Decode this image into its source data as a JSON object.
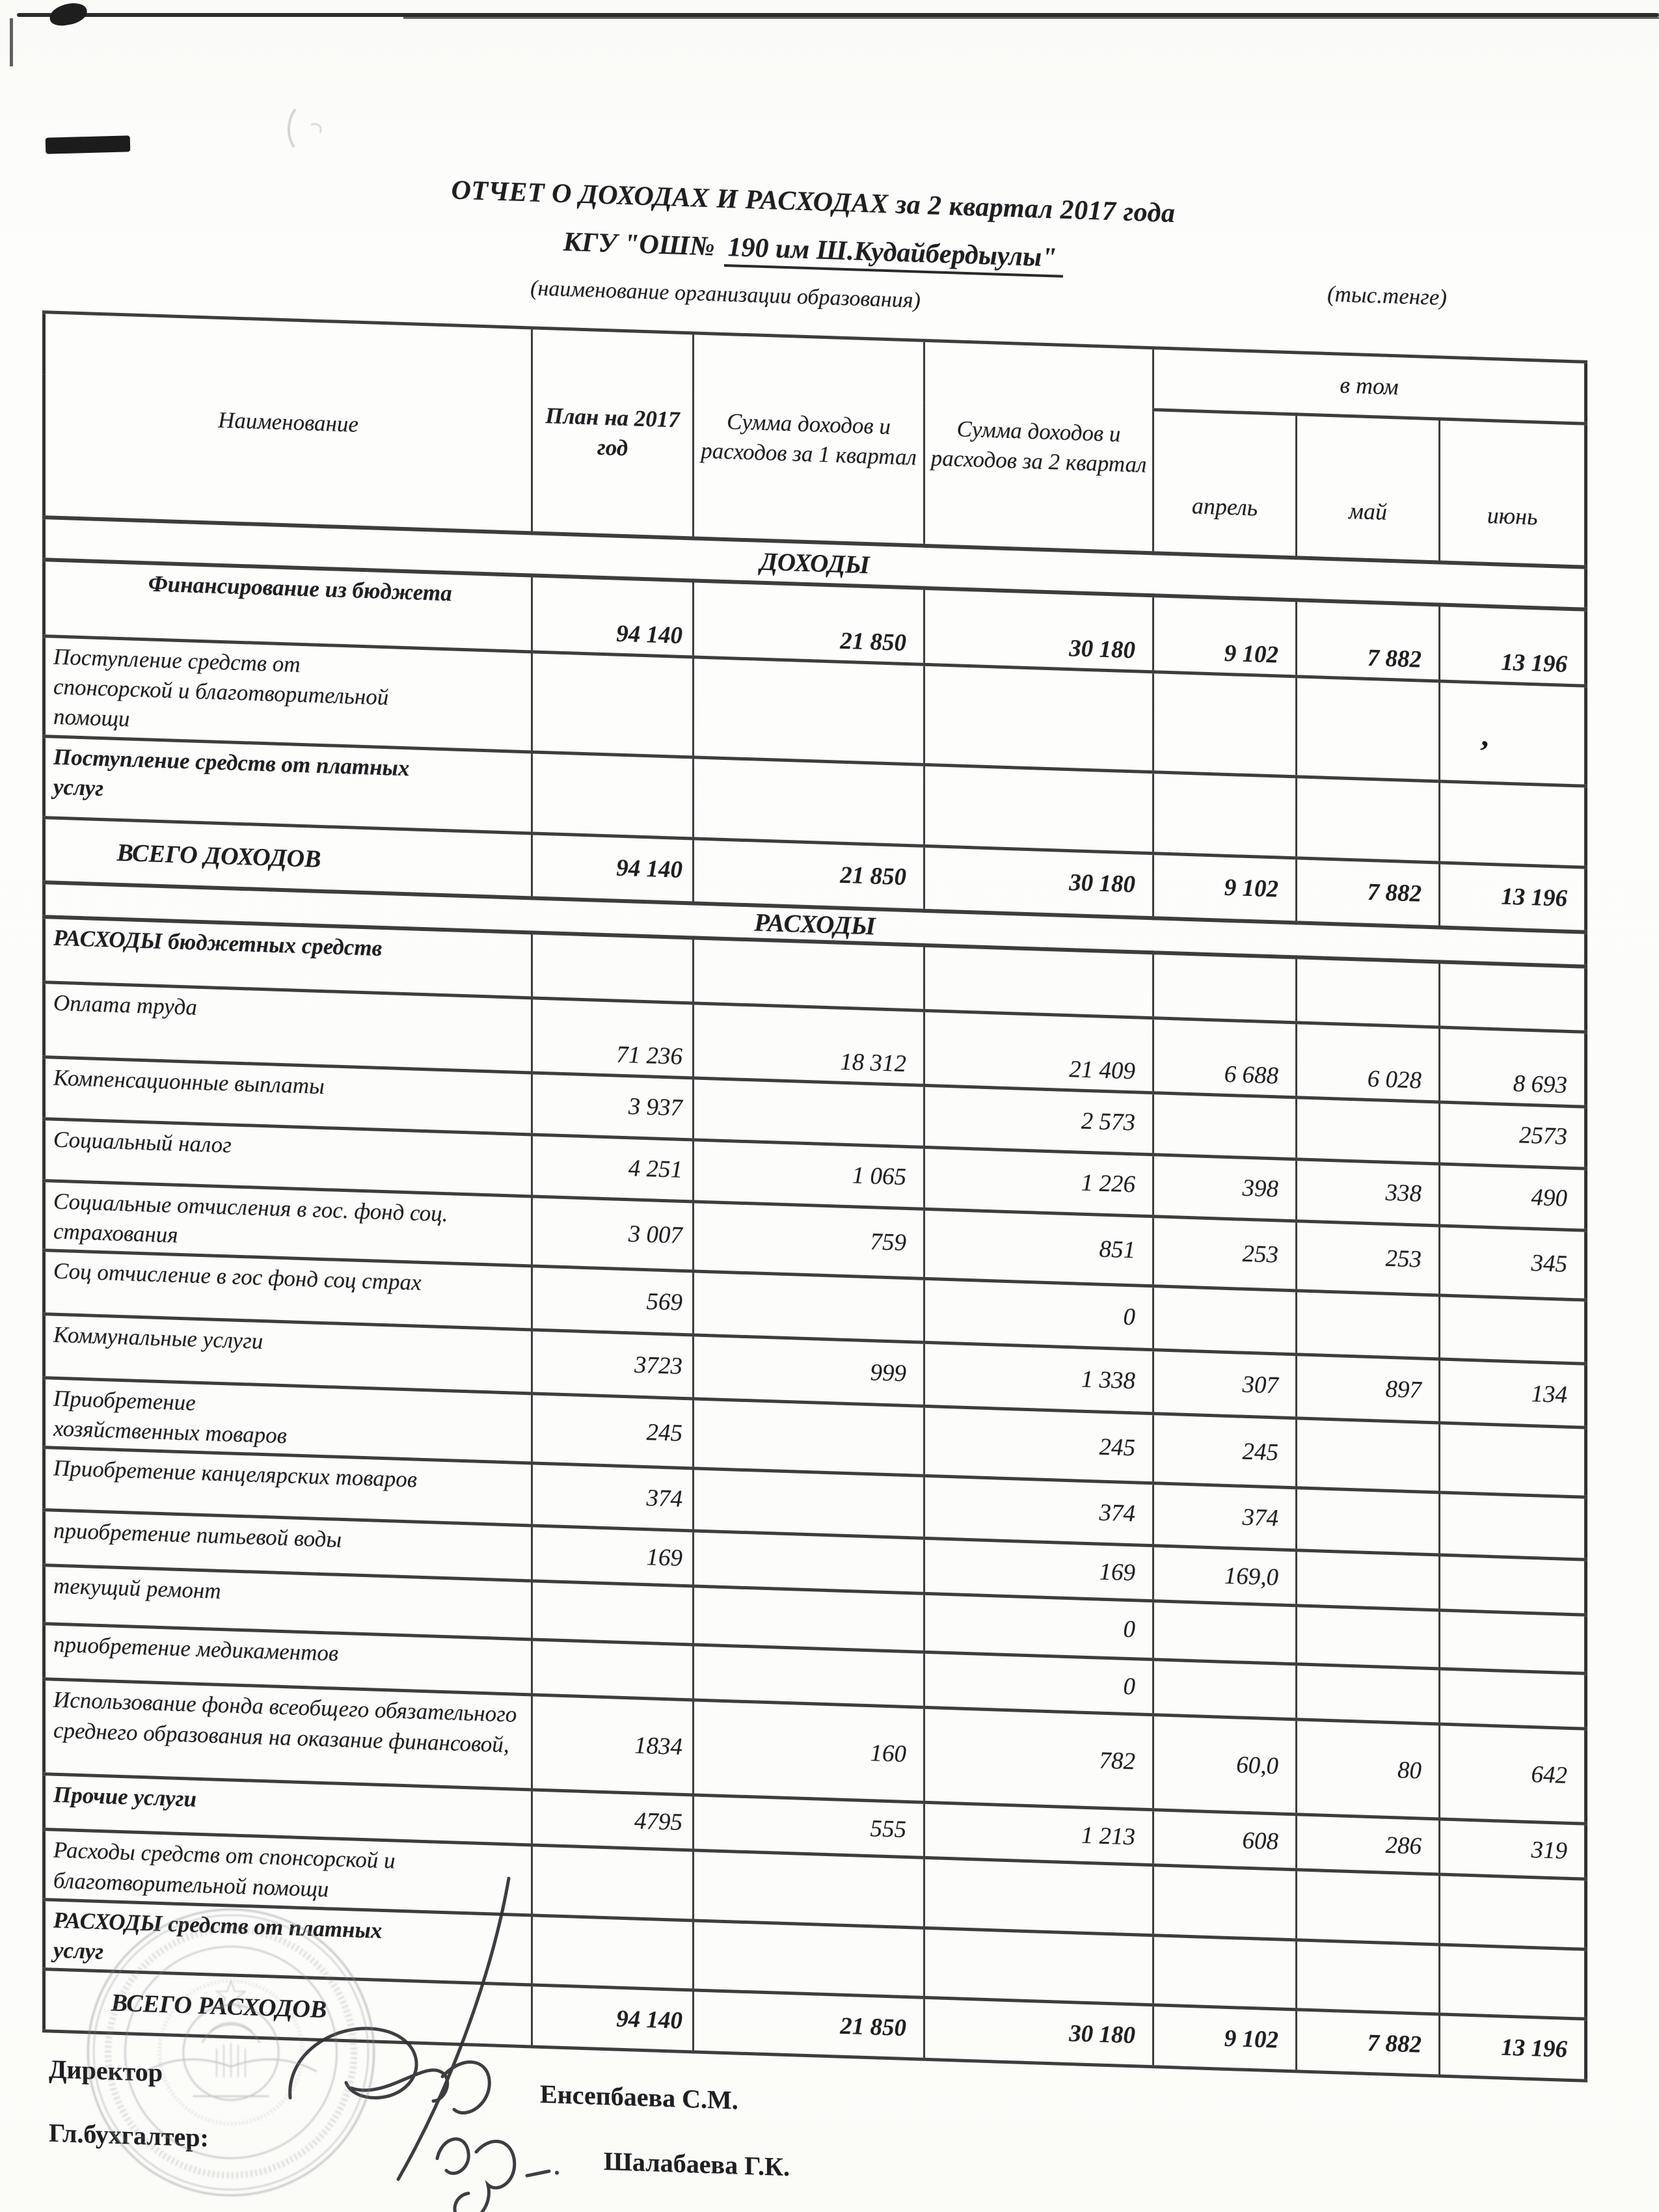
{
  "doc": {
    "title": "ОТЧЕТ О ДОХОДАХ И РАСХОДАХ за 2 квартал 2017 года",
    "org_prefix": "КГУ  \"ОШ№",
    "org_name": "190 им Ш.Кудайбердыулы\"",
    "org_caption": "(наименование организации образования)",
    "currency_note": "(тыс.тенге)"
  },
  "colors": {
    "ink": "#1f1f22",
    "line": "#3d3d3d",
    "stamp": "#7e8b8d",
    "paper": "#fcfcfa"
  },
  "table": {
    "headers": {
      "name": "Наименование",
      "plan": "План на 2017 год",
      "q1": "Сумма доходов и расходов за  1 квартал",
      "q2": "Сумма доходов и расходов за  2 квартал",
      "group": "в том",
      "months": [
        "апрель",
        "май",
        "июнь"
      ]
    },
    "rows": [
      {
        "section": true,
        "label": "ДОХОДЫ"
      },
      {
        "label": "Финансирование из бюджета",
        "values": [
          "94 140",
          "21 850",
          "30 180",
          "9 102",
          "7 882",
          "13 196"
        ]
      },
      {
        "label": "Поступление средств от спонсорской и благотворительной помощи",
        "values": [
          "",
          "",
          "",
          "",
          "",
          ""
        ]
      },
      {
        "label": "Поступление средств от платных услуг",
        "values": [
          "",
          "",
          "",
          "",
          "",
          ""
        ]
      },
      {
        "label": "ВСЕГО ДОХОДОВ",
        "values": [
          "94 140",
          "21 850",
          "30 180",
          "9 102",
          "7 882",
          "13 196"
        ]
      },
      {
        "section": true,
        "label": "РАСХОДЫ"
      },
      {
        "label": "РАСХОДЫ бюджетных средств",
        "values": [
          "",
          "",
          "",
          "",
          "",
          ""
        ]
      },
      {
        "label": "Оплата труда",
        "values": [
          "71 236",
          "18 312",
          "21 409",
          "6 688",
          "6 028",
          "8 693"
        ]
      },
      {
        "label": "Компенсационные выплаты",
        "values": [
          "3 937",
          "",
          "2 573",
          "",
          "",
          "2573"
        ]
      },
      {
        "label": "Социальный налог",
        "values": [
          "4 251",
          "1 065",
          "1 226",
          "398",
          "338",
          "490"
        ]
      },
      {
        "label": "Социальные отчисления в гос. фонд соц. страхования",
        "values": [
          "3 007",
          "759",
          "851",
          "253",
          "253",
          "345"
        ]
      },
      {
        "label": "Соц отчисление в гос фонд соц страх",
        "values": [
          "569",
          "",
          "0",
          "",
          "",
          ""
        ]
      },
      {
        "label": "Коммунальные услуги",
        "values": [
          "3723",
          "999",
          "1 338",
          "307",
          "897",
          "134"
        ]
      },
      {
        "label": "Приобретение хозяйственных товаров",
        "values": [
          "245",
          "",
          "245",
          "245",
          "",
          ""
        ]
      },
      {
        "label": "Приобретение канцелярских товаров",
        "values": [
          "374",
          "",
          "374",
          "374",
          "",
          ""
        ]
      },
      {
        "label": "приобретение питьевой воды",
        "values": [
          "169",
          "",
          "169",
          "169,0",
          "",
          ""
        ]
      },
      {
        "label": "текущий ремонт",
        "values": [
          "",
          "",
          "0",
          "",
          "",
          ""
        ]
      },
      {
        "label": "приобретение медикаментов",
        "values": [
          "",
          "",
          "0",
          "",
          "",
          ""
        ]
      },
      {
        "label": "Использование фонда всеобщего обязательного среднего образования на оказание финансовой,",
        "values": [
          "1834",
          "160",
          "782",
          "60,0",
          "80",
          "642"
        ]
      },
      {
        "label": "Прочие услуги",
        "values": [
          "4795",
          "555",
          "1 213",
          "608",
          "286",
          "319"
        ]
      },
      {
        "label": "Расходы средств от спонсорской и благотворительной помощи",
        "values": [
          "",
          "",
          "",
          "",
          "",
          ""
        ]
      },
      {
        "label": "РАСХОДЫ  средств от платных услуг",
        "values": [
          "",
          "",
          "",
          "",
          "",
          ""
        ]
      },
      {
        "label": "ВСЕГО РАСХОДОВ",
        "values": [
          "94 140",
          "21 850",
          "30 180",
          "9 102",
          "7 882",
          "13 196"
        ]
      }
    ]
  },
  "footer": {
    "director_label": "Директор",
    "director_name": "Енсепбаева С.М.",
    "accountant_label": "Гл.бухгалтер:",
    "accountant_name": "Шалабаева Г.К."
  },
  "artifacts": {
    "ink_mark": "ʼ"
  }
}
